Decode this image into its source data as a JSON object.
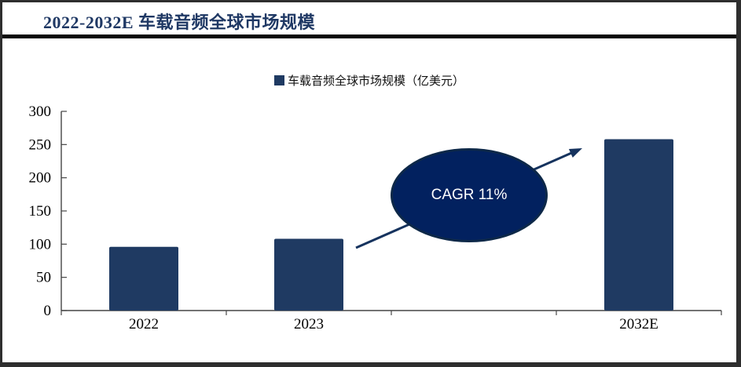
{
  "header": {
    "title": "2022-2032E 车载音频全球市场规模"
  },
  "legend": {
    "label": "车载音频全球市场规模（亿美元）"
  },
  "annotation": {
    "text": "CAGR 11%"
  },
  "colors": {
    "title_text": "#1f3864",
    "bar": "#1f3a62",
    "ellipse_fill": "#02215f",
    "ellipse_stroke": "#0d2848",
    "arrow": "#16335e",
    "axis": "#454545",
    "axis_text": "#000000",
    "rule": "#070707",
    "frame": "#2e2e2e"
  },
  "chart_data": {
    "type": "bar",
    "title": "2022-2032E 车载音频全球市场规模",
    "categories": [
      "2022",
      "2023",
      "2032E"
    ],
    "values": [
      96,
      108,
      258
    ],
    "unit_label": "亿美元",
    "legend": [
      "车载音频全球市场规模（亿美元）"
    ],
    "legend_position": "top-center",
    "xlabel": "",
    "ylabel": "",
    "ylim": [
      0,
      300
    ],
    "ytick_step": 50,
    "yticks": [
      0,
      50,
      100,
      150,
      200,
      250,
      300
    ],
    "grid": false,
    "annotation": "CAGR 11%",
    "note": "x axis has 4 category slots; slot between 2023 and 2032E is empty"
  }
}
